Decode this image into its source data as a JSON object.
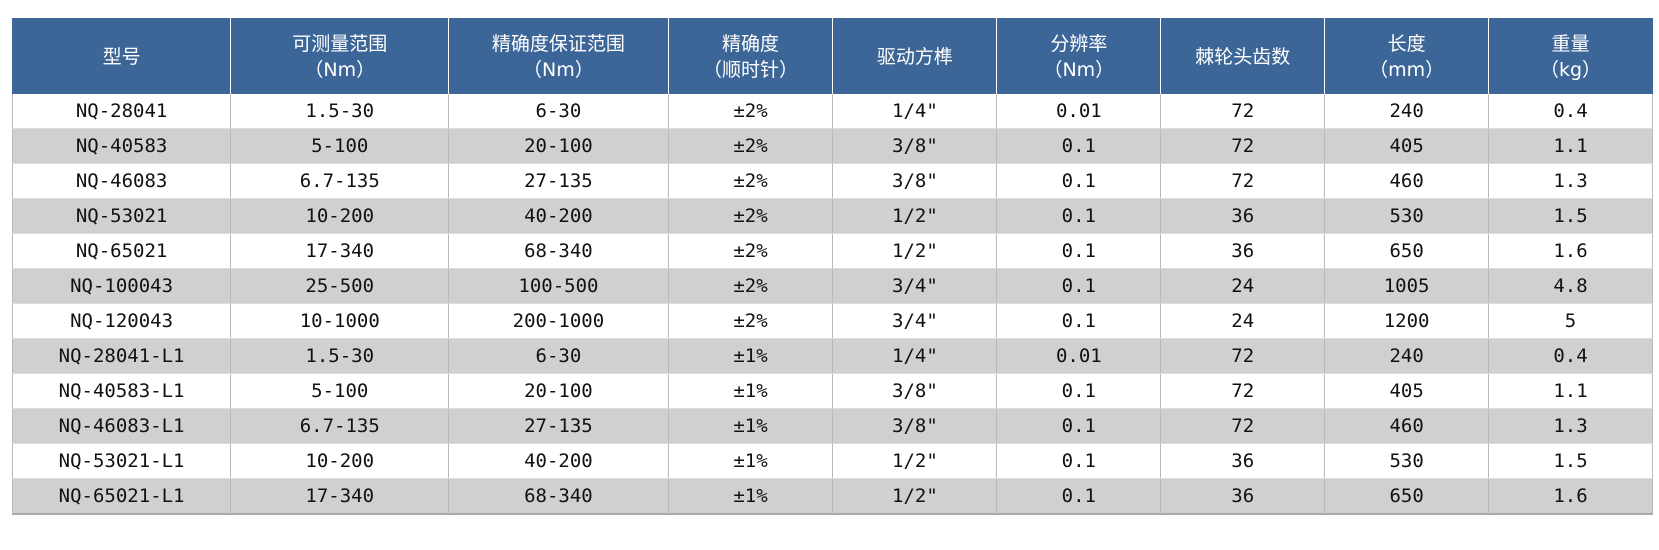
{
  "table": {
    "headers": [
      {
        "line1": "型号",
        "line2": ""
      },
      {
        "line1": "可测量范围",
        "line2": "（Nm）"
      },
      {
        "line1": "精确度保证范围",
        "line2": "（Nm）"
      },
      {
        "line1": "精确度",
        "line2": "（顺时针）"
      },
      {
        "line1": "驱动方榫",
        "line2": ""
      },
      {
        "line1": "分辨率",
        "line2": "（Nm）"
      },
      {
        "line1": "棘轮头齿数",
        "line2": ""
      },
      {
        "line1": "长度",
        "line2": "（mm）"
      },
      {
        "line1": "重量",
        "line2": "（kg）"
      }
    ],
    "rows": [
      [
        "NQ-28041",
        "1.5-30",
        "6-30",
        "±2%",
        "1/4\"",
        "0.01",
        "72",
        "240",
        "0.4"
      ],
      [
        "NQ-40583",
        "5-100",
        "20-100",
        "±2%",
        "3/8\"",
        "0.1",
        "72",
        "405",
        "1.1"
      ],
      [
        "NQ-46083",
        "6.7-135",
        "27-135",
        "±2%",
        "3/8\"",
        "0.1",
        "72",
        "460",
        "1.3"
      ],
      [
        "NQ-53021",
        "10-200",
        "40-200",
        "±2%",
        "1/2\"",
        "0.1",
        "36",
        "530",
        "1.5"
      ],
      [
        "NQ-65021",
        "17-340",
        "68-340",
        "±2%",
        "1/2\"",
        "0.1",
        "36",
        "650",
        "1.6"
      ],
      [
        "NQ-100043",
        "25-500",
        "100-500",
        "±2%",
        "3/4\"",
        "0.1",
        "24",
        "1005",
        "4.8"
      ],
      [
        "NQ-120043",
        "10-1000",
        "200-1000",
        "±2%",
        "3/4\"",
        "0.1",
        "24",
        "1200",
        "5"
      ],
      [
        "NQ-28041-L1",
        "1.5-30",
        "6-30",
        "±1%",
        "1/4\"",
        "0.01",
        "72",
        "240",
        "0.4"
      ],
      [
        "NQ-40583-L1",
        "5-100",
        "20-100",
        "±1%",
        "3/8\"",
        "0.1",
        "72",
        "405",
        "1.1"
      ],
      [
        "NQ-46083-L1",
        "6.7-135",
        "27-135",
        "±1%",
        "3/8\"",
        "0.1",
        "72",
        "460",
        "1.3"
      ],
      [
        "NQ-53021-L1",
        "10-200",
        "40-200",
        "±1%",
        "1/2\"",
        "0.1",
        "36",
        "530",
        "1.5"
      ],
      [
        "NQ-65021-L1",
        "17-340",
        "68-340",
        "±1%",
        "1/2\"",
        "0.1",
        "36",
        "650",
        "1.6"
      ]
    ]
  },
  "colors": {
    "header_bg": "#3d6698",
    "header_text": "#ffffff",
    "row_alt_bg": "#cfd1d1"
  }
}
